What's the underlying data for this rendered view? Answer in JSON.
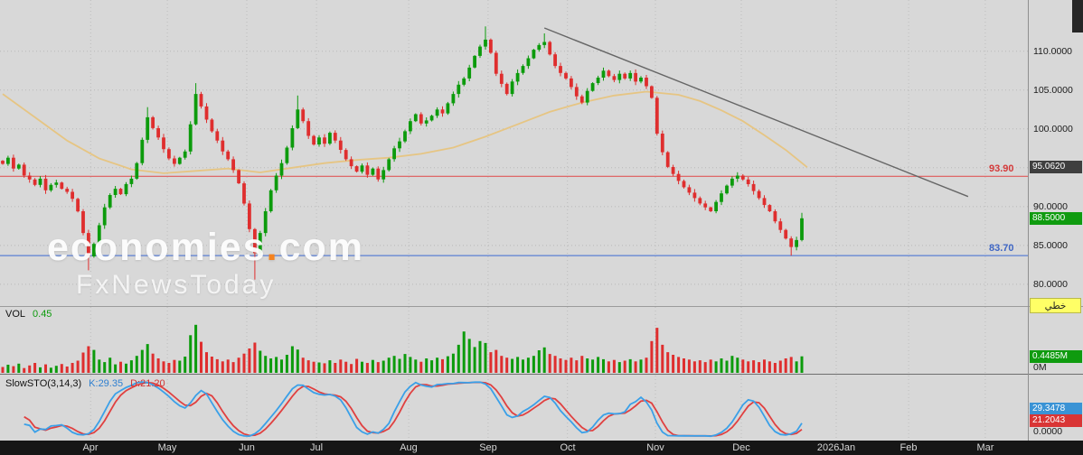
{
  "watermark": {
    "brand_name": "economies",
    "brand_dot": ".",
    "brand_tld": "com",
    "line2": "FxNewsToday"
  },
  "panels": {
    "volume": {
      "label": "VOL",
      "value": "0.45",
      "last_box": "0.4485M",
      "zero_label": "0M"
    },
    "stochastic": {
      "label": "SlowSTO(3,14,3)",
      "k_label": "K:29.35",
      "d_label": "D:21.20",
      "k_box": "29.3478",
      "d_box": "21.2043",
      "zero_label": "0.0000"
    }
  },
  "price_boxes": {
    "ma_box": {
      "text": "95.0620",
      "value": 95.062
    },
    "last_box": {
      "text": "88.5000",
      "value": 88.5
    }
  },
  "linear_button": {
    "label": "خطي"
  },
  "colors": {
    "up": "#0c9b0c",
    "down": "#df2e2e",
    "ma": "#e6c583",
    "trend": "#666666",
    "resistance": "#e05a5a",
    "support": "#5b7fd4",
    "k_line": "#3aa0e8",
    "d_line": "#e04040"
  },
  "chart_data": [
    {
      "type": "candlestick",
      "ylim": [
        77.2,
        116.6
      ],
      "grid_prices": [
        110,
        105,
        100,
        95,
        90,
        85,
        80
      ],
      "axis_labels": [
        "110.0000",
        "105.0000",
        "100.0000",
        "90.0000",
        "85.0000",
        "80.0000"
      ],
      "months": [
        {
          "label": "Apr",
          "index": 16.4
        },
        {
          "label": "May",
          "index": 30.7
        },
        {
          "label": "Jun",
          "index": 45.5
        },
        {
          "label": "Jul",
          "index": 58.5
        },
        {
          "label": "Aug",
          "index": 75.7
        },
        {
          "label": "Sep",
          "index": 90.5
        },
        {
          "label": "Oct",
          "index": 105.3
        },
        {
          "label": "Nov",
          "index": 121.7
        },
        {
          "label": "Dec",
          "index": 137.7
        },
        {
          "label": "2026Jan",
          "index": 155.4
        },
        {
          "label": "Feb",
          "index": 168.9
        },
        {
          "label": "Mar",
          "index": 183.2
        }
      ],
      "closes": [
        95.5,
        96.3,
        94.9,
        95.4,
        94.0,
        93.5,
        92.8,
        93.6,
        92.1,
        92.8,
        93.1,
        92.3,
        91.9,
        91.0,
        89.4,
        86.6,
        83.6,
        85.2,
        87.6,
        89.9,
        91.5,
        92.3,
        91.6,
        92.9,
        93.6,
        95.6,
        98.6,
        101.5,
        100.1,
        98.9,
        97.4,
        96.2,
        95.5,
        96.3,
        97.1,
        100.6,
        104.5,
        102.9,
        101.2,
        99.7,
        98.5,
        97.1,
        96.1,
        94.7,
        93.0,
        90.4,
        87.1,
        84.0,
        86.6,
        89.4,
        92.1,
        94.0,
        95.6,
        97.6,
        100.1,
        102.5,
        101.0,
        99.1,
        98.0,
        98.9,
        98.1,
        99.5,
        98.5,
        97.3,
        96.1,
        95.2,
        94.5,
        95.3,
        94.1,
        94.9,
        93.5,
        94.7,
        96.1,
        97.5,
        98.4,
        99.7,
        101.0,
        101.9,
        100.7,
        101.1,
        101.7,
        102.5,
        102.0,
        103.3,
        104.5,
        105.7,
        106.5,
        107.9,
        109.4,
        110.6,
        111.5,
        109.8,
        107.1,
        105.8,
        104.5,
        106.1,
        107.2,
        108.1,
        109.1,
        110.2,
        110.8,
        111.2,
        109.6,
        108.1,
        107.2,
        106.5,
        105.4,
        104.2,
        103.4,
        104.9,
        105.9,
        106.6,
        107.5,
        106.8,
        106.3,
        107.1,
        106.5,
        107.2,
        106.1,
        106.6,
        105.5,
        104.0,
        99.4,
        97.0,
        95.1,
        94.2,
        93.3,
        92.5,
        91.8,
        91.1,
        90.4,
        89.9,
        89.4,
        90.6,
        91.7,
        92.7,
        93.6,
        94.0,
        93.5,
        92.9,
        92.0,
        91.1,
        90.2,
        89.4,
        88.1,
        87.0,
        85.9,
        84.8,
        85.7,
        88.5
      ],
      "wick_overrides": {
        "16": {
          "l": 81.8
        },
        "27": {
          "h": 102.8
        },
        "36": {
          "h": 105.9
        },
        "47": {
          "l": 80.6
        },
        "55": {
          "h": 104.3
        },
        "90": {
          "h": 113.2
        },
        "101": {
          "h": 112.3
        },
        "147": {
          "l": 83.7
        },
        "149": {
          "h": 89.2
        }
      },
      "ma": {
        "last_value": 95.062,
        "anchors": [
          [
            0,
            104.5
          ],
          [
            6,
            101.5
          ],
          [
            12,
            98.5
          ],
          [
            18,
            96.2
          ],
          [
            24,
            94.8
          ],
          [
            30,
            94.3
          ],
          [
            36,
            94.6
          ],
          [
            42,
            94.9
          ],
          [
            48,
            94.4
          ],
          [
            54,
            95.0
          ],
          [
            60,
            95.6
          ],
          [
            66,
            96.0
          ],
          [
            72,
            96.3
          ],
          [
            78,
            96.8
          ],
          [
            84,
            97.6
          ],
          [
            90,
            99.0
          ],
          [
            96,
            100.6
          ],
          [
            102,
            102.2
          ],
          [
            108,
            103.4
          ],
          [
            114,
            104.3
          ],
          [
            120,
            104.8
          ],
          [
            126,
            104.4
          ],
          [
            130,
            103.6
          ],
          [
            134,
            102.4
          ],
          [
            138,
            101.0
          ],
          [
            142,
            99.2
          ],
          [
            146,
            97.3
          ],
          [
            150,
            95.06
          ]
        ]
      },
      "trendline": {
        "from": [
          101,
          113.0
        ],
        "to": [
          180,
          91.3
        ]
      },
      "hlines": [
        {
          "value": 93.9,
          "label": "93.90",
          "color": "#e05a5a"
        },
        {
          "value": 83.7,
          "label": "83.70",
          "color": "#5b7fd4"
        }
      ],
      "last_price": 88.5
    },
    {
      "type": "bar",
      "name": "Volume",
      "unit": "M",
      "ymax": 1.32,
      "current": "0.45",
      "last_label": "0.4485M",
      "zero_label": "0M",
      "values": [
        0.16,
        0.22,
        0.18,
        0.25,
        0.13,
        0.2,
        0.27,
        0.15,
        0.23,
        0.14,
        0.19,
        0.24,
        0.17,
        0.27,
        0.33,
        0.55,
        0.72,
        0.62,
        0.36,
        0.29,
        0.41,
        0.23,
        0.3,
        0.25,
        0.34,
        0.46,
        0.62,
        0.78,
        0.52,
        0.39,
        0.31,
        0.27,
        0.35,
        0.33,
        0.44,
        1.02,
        1.3,
        0.84,
        0.56,
        0.44,
        0.37,
        0.31,
        0.36,
        0.29,
        0.41,
        0.52,
        0.66,
        0.82,
        0.6,
        0.46,
        0.39,
        0.43,
        0.36,
        0.49,
        0.72,
        0.63,
        0.41,
        0.34,
        0.3,
        0.28,
        0.26,
        0.34,
        0.27,
        0.36,
        0.3,
        0.24,
        0.38,
        0.3,
        0.27,
        0.35,
        0.29,
        0.33,
        0.41,
        0.46,
        0.38,
        0.51,
        0.43,
        0.36,
        0.3,
        0.39,
        0.34,
        0.41,
        0.37,
        0.45,
        0.52,
        0.76,
        1.12,
        0.92,
        0.7,
        0.86,
        0.81,
        0.56,
        0.62,
        0.46,
        0.41,
        0.38,
        0.43,
        0.36,
        0.41,
        0.46,
        0.61,
        0.69,
        0.51,
        0.46,
        0.39,
        0.35,
        0.41,
        0.34,
        0.46,
        0.39,
        0.36,
        0.43,
        0.37,
        0.31,
        0.35,
        0.29,
        0.33,
        0.37,
        0.31,
        0.36,
        0.41,
        0.86,
        1.22,
        0.76,
        0.56,
        0.49,
        0.43,
        0.39,
        0.36,
        0.31,
        0.34,
        0.29,
        0.36,
        0.31,
        0.39,
        0.33,
        0.46,
        0.41,
        0.36,
        0.31,
        0.34,
        0.29,
        0.36,
        0.31,
        0.27,
        0.33,
        0.39,
        0.43,
        0.31,
        0.4485
      ]
    },
    {
      "type": "line",
      "name": "SlowSTO(3,14,3)",
      "ylim": [
        0,
        100
      ],
      "k_current": 29.35,
      "d_current": 21.2,
      "k_box": "29.3478",
      "d_box": "21.2043",
      "zero_label": "0.0000",
      "derived": "slow stochastic (3,14,3) computed from the candlestick closes above"
    }
  ]
}
